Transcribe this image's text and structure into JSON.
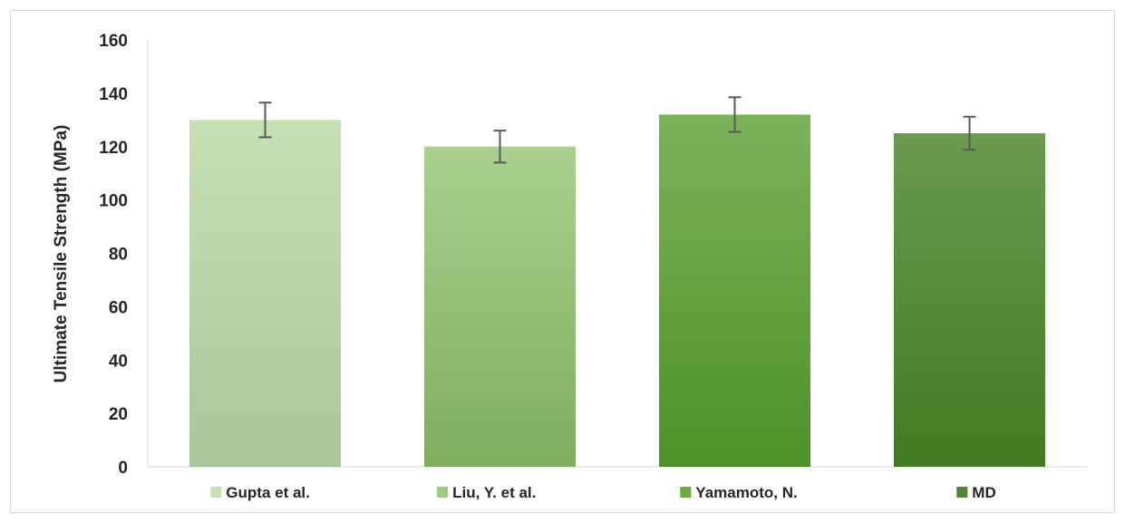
{
  "chart_data": {
    "type": "bar",
    "title": "",
    "xlabel": "",
    "ylabel": "Ultimate Tensile Strength (MPa)",
    "ylim": [
      0,
      160
    ],
    "yticks": [
      0,
      20,
      40,
      60,
      80,
      100,
      120,
      140,
      160
    ],
    "grid": false,
    "legend_position": "bottom",
    "series": [
      {
        "name": "Gupta et al.",
        "value": 130,
        "error": 6.5,
        "color_top": "#c6e0b4",
        "color_bottom": "#a9c79a",
        "legend_color": "#c6e0b4"
      },
      {
        "name": "Liu, Y. et al.",
        "value": 120,
        "error": 6,
        "color_top": "#a9d08e",
        "color_bottom": "#7fae5f",
        "legend_color": "#9ccc7e"
      },
      {
        "name": "Yamamoto, N.",
        "value": 132,
        "error": 6.5,
        "color_top": "#7cb25a",
        "color_bottom": "#4e9126",
        "legend_color": "#6aab3e"
      },
      {
        "name": "MD",
        "value": 125,
        "error": 6.2,
        "color_top": "#6a9a4e",
        "color_bottom": "#427a22",
        "legend_color": "#548235"
      }
    ],
    "error_bar_color": "#595959"
  }
}
